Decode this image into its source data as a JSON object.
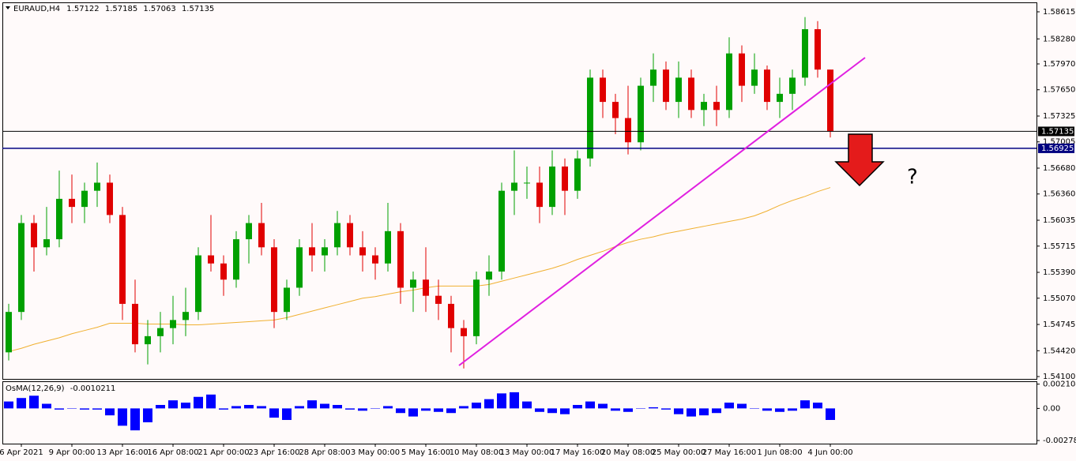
{
  "header": {
    "symbol": "EURAUD,H4",
    "open": 1.57122,
    "high": 1.57185,
    "low": 1.57063,
    "close": 1.57135
  },
  "annotation": "?",
  "chart_data": [
    {
      "type": "candlestick",
      "up_color": "#00a000",
      "down_color": "#e00000",
      "open": [
        1.544,
        1.549,
        1.56,
        1.557,
        1.558,
        1.563,
        1.562,
        1.564,
        1.565,
        1.561,
        1.55,
        1.545,
        1.546,
        1.547,
        1.548,
        1.549,
        1.556,
        1.555,
        1.553,
        1.558,
        1.56,
        1.557,
        1.549,
        1.552,
        1.557,
        1.556,
        1.557,
        1.56,
        1.557,
        1.556,
        1.555,
        1.559,
        1.552,
        1.553,
        1.551,
        1.55,
        1.547,
        1.546,
        1.553,
        1.554,
        1.564,
        1.565,
        1.565,
        1.562,
        1.567,
        1.564,
        1.568,
        1.578,
        1.575,
        1.573,
        1.57,
        1.577,
        1.579,
        1.575,
        1.578,
        1.574,
        1.575,
        1.574,
        1.581,
        1.577,
        1.579,
        1.575,
        1.576,
        1.578,
        1.584,
        1.579
      ],
      "high": [
        1.55,
        1.561,
        1.561,
        1.562,
        1.5665,
        1.566,
        1.565,
        1.5675,
        1.566,
        1.562,
        1.553,
        1.548,
        1.549,
        1.551,
        1.552,
        1.557,
        1.561,
        1.556,
        1.559,
        1.561,
        1.5625,
        1.558,
        1.553,
        1.558,
        1.56,
        1.558,
        1.5615,
        1.561,
        1.559,
        1.557,
        1.5625,
        1.56,
        1.554,
        1.557,
        1.553,
        1.551,
        1.548,
        1.554,
        1.556,
        1.565,
        1.569,
        1.567,
        1.567,
        1.569,
        1.568,
        1.569,
        1.579,
        1.579,
        1.576,
        1.577,
        1.578,
        1.581,
        1.58,
        1.58,
        1.579,
        1.576,
        1.577,
        1.583,
        1.582,
        1.581,
        1.5795,
        1.578,
        1.579,
        1.5855,
        1.585,
        1.579
      ],
      "low": [
        1.543,
        1.548,
        1.554,
        1.556,
        1.557,
        1.56,
        1.56,
        1.562,
        1.56,
        1.548,
        1.544,
        1.5425,
        1.544,
        1.545,
        1.546,
        1.548,
        1.554,
        1.551,
        1.552,
        1.555,
        1.556,
        1.547,
        1.548,
        1.551,
        1.554,
        1.554,
        1.556,
        1.556,
        1.554,
        1.553,
        1.554,
        1.55,
        1.549,
        1.549,
        1.548,
        1.544,
        1.542,
        1.545,
        1.551,
        1.553,
        1.561,
        1.563,
        1.56,
        1.561,
        1.561,
        1.563,
        1.567,
        1.573,
        1.571,
        1.5685,
        1.569,
        1.575,
        1.574,
        1.573,
        1.573,
        1.572,
        1.572,
        1.573,
        1.575,
        1.576,
        1.574,
        1.573,
        1.574,
        1.577,
        1.578,
        1.5706
      ],
      "close": [
        1.549,
        1.56,
        1.557,
        1.558,
        1.563,
        1.562,
        1.564,
        1.565,
        1.561,
        1.55,
        1.545,
        1.546,
        1.547,
        1.548,
        1.549,
        1.556,
        1.555,
        1.553,
        1.558,
        1.56,
        1.557,
        1.549,
        1.552,
        1.557,
        1.556,
        1.557,
        1.56,
        1.557,
        1.556,
        1.555,
        1.559,
        1.552,
        1.553,
        1.551,
        1.55,
        1.547,
        1.546,
        1.553,
        1.554,
        1.564,
        1.565,
        1.565,
        1.562,
        1.567,
        1.564,
        1.568,
        1.578,
        1.575,
        1.573,
        1.57,
        1.577,
        1.579,
        1.575,
        1.578,
        1.574,
        1.575,
        1.574,
        1.581,
        1.577,
        1.579,
        1.575,
        1.576,
        1.578,
        1.584,
        1.579,
        1.57135
      ],
      "ma": {
        "color": "#f0b030",
        "values": [
          1.5441,
          1.5445,
          1.545,
          1.5454,
          1.5458,
          1.5463,
          1.5467,
          1.5471,
          1.5476,
          1.5476,
          1.5476,
          1.5475,
          1.5475,
          1.5475,
          1.5474,
          1.5474,
          1.5475,
          1.5476,
          1.5477,
          1.5478,
          1.5479,
          1.548,
          1.5483,
          1.5487,
          1.5491,
          1.5495,
          1.5499,
          1.5503,
          1.5507,
          1.5509,
          1.5512,
          1.5515,
          1.5517,
          1.552,
          1.5522,
          1.5522,
          1.5522,
          1.5522,
          1.5524,
          1.5528,
          1.5532,
          1.5536,
          1.554,
          1.5544,
          1.5549,
          1.5555,
          1.556,
          1.5565,
          1.5571,
          1.5576,
          1.558,
          1.5583,
          1.5587,
          1.559,
          1.5593,
          1.5596,
          1.5599,
          1.5602,
          1.5605,
          1.5609,
          1.5615,
          1.5622,
          1.5628,
          1.5633,
          1.5639,
          1.5644
        ]
      },
      "price_lines": [
        {
          "value": 1.57135,
          "color": "#000000"
        },
        {
          "value": 1.56925,
          "color": "#000080"
        }
      ],
      "ylim": [
        1.54071,
        1.58732
      ],
      "yticks": [
        1.58615,
        {
          "value": 1.5828,
          "label": "1.58280"
        },
        {
          "value": 1.5797,
          "label": "1.57970"
        },
        {
          "value": 1.5765,
          "label": "1.57650"
        },
        1.57325,
        1.57005,
        {
          "value": 1.5668,
          "label": "1.56680"
        },
        {
          "value": 1.5636,
          "label": "1.56360"
        },
        1.56035,
        1.55715,
        {
          "value": 1.5539,
          "label": "1.55390"
        },
        {
          "value": 1.5507,
          "label": "1.55070"
        },
        1.54745,
        {
          "value": 1.5442,
          "label": "1.54420"
        },
        {
          "value": 1.541,
          "label": "1.54100"
        }
      ]
    },
    {
      "type": "bar",
      "title": "OsMA(12,26,9)",
      "current": -0.0010211,
      "color": "#0000ff",
      "categories": [
        null,
        "6 Apr 2021",
        null,
        null,
        null,
        "9 Apr 00:00",
        null,
        null,
        null,
        "13 Apr 16:00",
        null,
        null,
        null,
        "16 Apr 08:00",
        null,
        null,
        null,
        "21 Apr 00:00",
        null,
        null,
        null,
        "23 Apr 16:00",
        null,
        null,
        null,
        "28 Apr 08:00",
        null,
        null,
        null,
        "3 May 00:00",
        null,
        null,
        null,
        "5 May 16:00",
        null,
        null,
        null,
        "10 May 08:00",
        null,
        null,
        null,
        "13 May 00:00",
        null,
        null,
        null,
        "17 May 16:00",
        null,
        null,
        null,
        "20 May 08:00",
        null,
        null,
        null,
        "25 May 00:00",
        null,
        null,
        null,
        "27 May 16:00",
        null,
        null,
        null,
        "1 Jun 08:00",
        null,
        null,
        null,
        "4 Jun 00:00"
      ],
      "values": [
        0.0006,
        0.0009,
        0.0011,
        0.0004,
        -0.0001,
        0.0,
        -0.0001,
        -0.0001,
        -0.0006,
        -0.0015,
        -0.0019,
        -0.0012,
        0.0003,
        0.0007,
        0.0005,
        0.001,
        0.0012,
        -0.0001,
        0.0002,
        0.0003,
        0.0002,
        -0.0008,
        -0.001,
        0.0002,
        0.0007,
        0.0004,
        0.0003,
        -0.0001,
        -0.0002,
        0.0,
        0.0002,
        -0.0004,
        -0.0007,
        -0.0002,
        -0.0003,
        -0.0004,
        0.0002,
        0.0005,
        0.0008,
        0.0013,
        0.0014,
        0.0006,
        -0.0003,
        -0.0004,
        -0.0005,
        0.0003,
        0.0006,
        0.0004,
        -0.0002,
        -0.0003,
        0.0,
        0.0001,
        -0.0001,
        -0.0005,
        -0.0007,
        -0.0006,
        -0.0004,
        0.0005,
        0.0004,
        0.0,
        -0.0002,
        -0.0003,
        -0.0002,
        0.0007,
        0.0005,
        -0.001
      ],
      "ylim": [
        -0.00305,
        0.00235
      ],
      "yticks": [
        0.0021043,
        {
          "value": 0,
          "label": "0.00"
        },
        {
          "value": -0.0027814,
          "label": "-0.002781"
        }
      ]
    }
  ]
}
